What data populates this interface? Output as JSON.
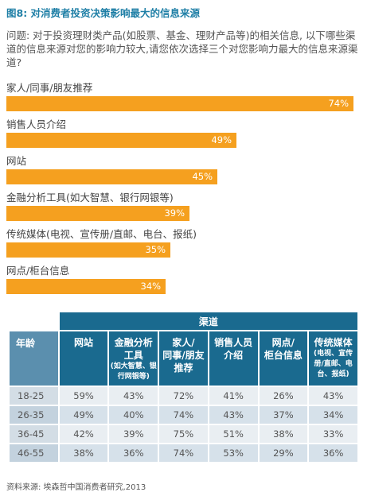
{
  "title": "图8: 对消费者投资决策影响最大的信息来源",
  "question": "问题: 对于投资理财类产品(如股票、基金、理财产品等)的相关信息, 以下哪些渠道的信息来源对您的影响力较大,请您依次选择三个对您影响力最大的信息来源渠道?",
  "colors": {
    "bar": "#f5a01f",
    "title": "#1f7fa6",
    "header": "#1a6a8f"
  },
  "chart_data": {
    "type": "bar",
    "orientation": "horizontal",
    "categories": [
      "家人/同事/朋友推荐",
      "销售人员介绍",
      "网站",
      "金融分析工具(如大智慧、银行网银等)",
      "传统媒体(电视、宣传册/直邮、电台、报纸)",
      "网点/柜台信息"
    ],
    "values": [
      74,
      49,
      45,
      39,
      35,
      34
    ],
    "value_labels": [
      "74%",
      "49%",
      "45%",
      "39%",
      "35%",
      "34%"
    ],
    "xlim": [
      0,
      100
    ]
  },
  "table": {
    "group_header": "渠道",
    "age_header": "年龄",
    "columns": [
      {
        "line1": "网站",
        "line2": "",
        "sub": ""
      },
      {
        "line1": "金融分析",
        "line2": "工具",
        "sub": "(如大智慧、银行网银等)"
      },
      {
        "line1": "家人/",
        "line2": "同事/朋友",
        "line3": "推荐",
        "sub": ""
      },
      {
        "line1": "销售人员",
        "line2": "介绍",
        "sub": ""
      },
      {
        "line1": "网点/",
        "line2": "柜台信息",
        "sub": ""
      },
      {
        "line1": "传统媒体",
        "line2": "",
        "sub": "(电视、宣传册/直邮、电台、报纸)"
      }
    ],
    "rows": [
      {
        "age": "18-25",
        "values": [
          "59%",
          "43%",
          "72%",
          "41%",
          "26%",
          "43%"
        ]
      },
      {
        "age": "26-35",
        "values": [
          "49%",
          "40%",
          "74%",
          "43%",
          "37%",
          "34%"
        ]
      },
      {
        "age": "36-45",
        "values": [
          "42%",
          "39%",
          "75%",
          "51%",
          "38%",
          "33%"
        ]
      },
      {
        "age": "46-55",
        "values": [
          "38%",
          "36%",
          "74%",
          "53%",
          "29%",
          "36%"
        ]
      }
    ]
  },
  "source": "资料来源: 埃森哲中国消费者研究,2013"
}
